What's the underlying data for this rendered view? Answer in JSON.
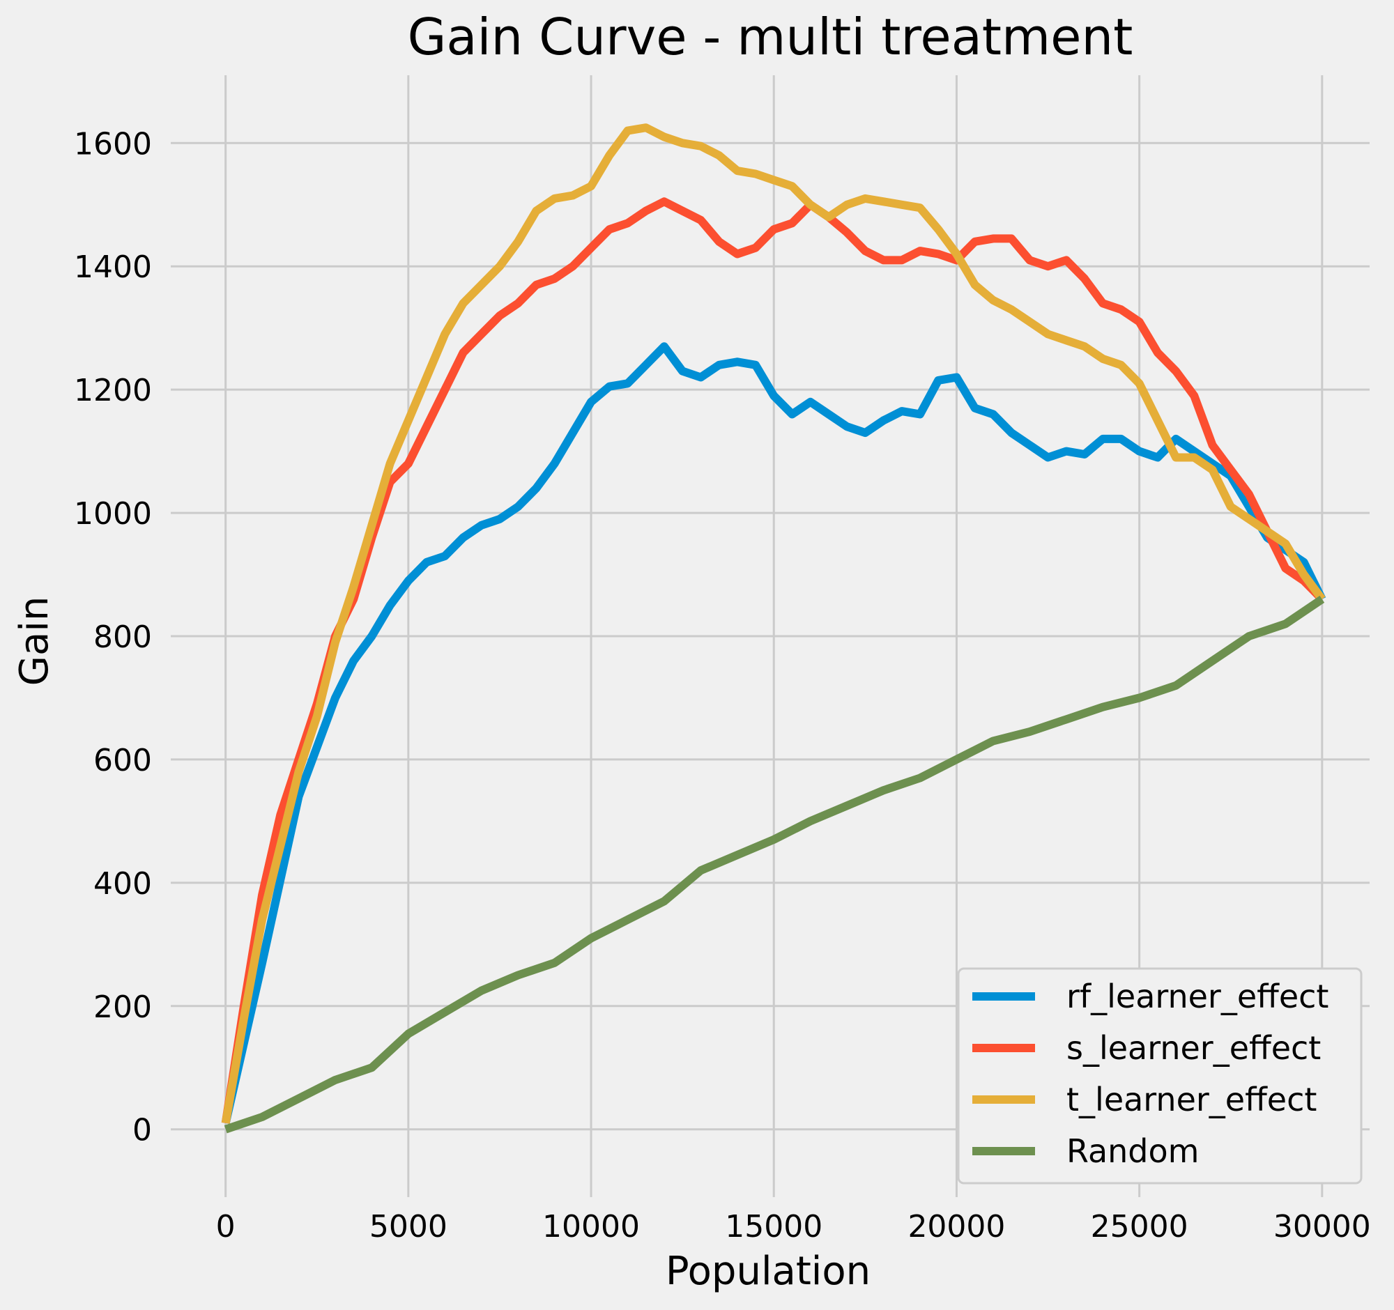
{
  "chart_data": {
    "type": "line",
    "title": "Gain Curve - multi treatment",
    "xlabel": "Population",
    "ylabel": "Gain",
    "xlim": [
      -1500,
      31300
    ],
    "ylim": [
      -110,
      1710
    ],
    "xticks": [
      0,
      5000,
      10000,
      15000,
      20000,
      25000,
      30000
    ],
    "yticks": [
      0,
      200,
      400,
      600,
      800,
      1000,
      1200,
      1400,
      1600
    ],
    "grid": true,
    "legend_position": "lower-right",
    "series": [
      {
        "name": "rf_learner_effect",
        "color": "#008fd5",
        "x": [
          0,
          1000,
          2000,
          3000,
          3500,
          4000,
          4500,
          5000,
          5500,
          6000,
          6500,
          7000,
          7500,
          8000,
          8500,
          9000,
          9500,
          10000,
          10500,
          11000,
          11500,
          12000,
          12500,
          13000,
          13500,
          14000,
          14500,
          15000,
          15500,
          16000,
          16500,
          17000,
          17500,
          18000,
          18500,
          19000,
          19500,
          20000,
          20500,
          21000,
          21500,
          22000,
          22500,
          23000,
          23500,
          24000,
          24500,
          25000,
          25500,
          26000,
          26500,
          27000,
          27500,
          28000,
          28500,
          29000,
          29500,
          30000
        ],
        "y": [
          10,
          270,
          540,
          700,
          760,
          800,
          850,
          890,
          920,
          930,
          960,
          980,
          990,
          1010,
          1040,
          1080,
          1130,
          1180,
          1205,
          1210,
          1240,
          1270,
          1230,
          1220,
          1240,
          1245,
          1240,
          1190,
          1160,
          1180,
          1160,
          1140,
          1130,
          1150,
          1165,
          1160,
          1215,
          1220,
          1170,
          1160,
          1130,
          1110,
          1090,
          1100,
          1095,
          1120,
          1120,
          1100,
          1090,
          1120,
          1100,
          1080,
          1060,
          1010,
          960,
          940,
          920,
          860
        ]
      },
      {
        "name": "s_learner_effect",
        "color": "#fc4f30",
        "x": [
          0,
          500,
          1000,
          1500,
          2000,
          2500,
          3000,
          3500,
          4000,
          4500,
          5000,
          5500,
          6000,
          6500,
          7000,
          7500,
          8000,
          8500,
          9000,
          9500,
          10000,
          10500,
          11000,
          11500,
          12000,
          12500,
          13000,
          13500,
          14000,
          14500,
          15000,
          15500,
          16000,
          16500,
          17000,
          17500,
          18000,
          18500,
          19000,
          19500,
          20000,
          20500,
          21000,
          21500,
          22000,
          22500,
          23000,
          23500,
          24000,
          24500,
          25000,
          25500,
          26000,
          26500,
          27000,
          27500,
          28000,
          28500,
          29000,
          29500,
          30000
        ],
        "y": [
          10,
          200,
          380,
          510,
          600,
          690,
          800,
          860,
          960,
          1050,
          1080,
          1140,
          1200,
          1260,
          1290,
          1320,
          1340,
          1370,
          1380,
          1400,
          1430,
          1460,
          1470,
          1490,
          1505,
          1490,
          1475,
          1440,
          1420,
          1430,
          1460,
          1470,
          1500,
          1480,
          1455,
          1425,
          1410,
          1410,
          1425,
          1420,
          1410,
          1440,
          1445,
          1445,
          1410,
          1400,
          1410,
          1380,
          1340,
          1330,
          1310,
          1260,
          1230,
          1190,
          1110,
          1070,
          1030,
          970,
          910,
          890,
          860
        ]
      },
      {
        "name": "t_learner_effect",
        "color": "#e5ae38",
        "x": [
          0,
          500,
          1000,
          1500,
          2000,
          2500,
          3000,
          3500,
          4000,
          4500,
          5000,
          5500,
          6000,
          6500,
          7000,
          7500,
          8000,
          8500,
          9000,
          9500,
          10000,
          10500,
          11000,
          11500,
          12000,
          12500,
          13000,
          13500,
          14000,
          14500,
          15000,
          15500,
          16000,
          16500,
          17000,
          17500,
          18000,
          18500,
          19000,
          19500,
          20000,
          20500,
          21000,
          21500,
          22000,
          22500,
          23000,
          23500,
          24000,
          24500,
          25000,
          25500,
          26000,
          26500,
          27000,
          27500,
          28000,
          28500,
          29000,
          29500,
          30000
        ],
        "y": [
          10,
          180,
          340,
          460,
          580,
          670,
          790,
          880,
          980,
          1080,
          1150,
          1220,
          1290,
          1340,
          1370,
          1400,
          1440,
          1490,
          1510,
          1515,
          1530,
          1580,
          1620,
          1625,
          1610,
          1600,
          1595,
          1580,
          1555,
          1550,
          1540,
          1530,
          1500,
          1480,
          1500,
          1510,
          1505,
          1500,
          1495,
          1460,
          1420,
          1370,
          1345,
          1330,
          1310,
          1290,
          1280,
          1270,
          1250,
          1240,
          1210,
          1150,
          1090,
          1090,
          1070,
          1010,
          990,
          970,
          950,
          900,
          860
        ]
      },
      {
        "name": "Random",
        "color": "#6d904f",
        "x": [
          0,
          1000,
          2000,
          3000,
          4000,
          5000,
          6000,
          7000,
          8000,
          9000,
          10000,
          11000,
          12000,
          13000,
          14000,
          15000,
          16000,
          17000,
          18000,
          19000,
          20000,
          21000,
          22000,
          23000,
          24000,
          25000,
          26000,
          27000,
          28000,
          29000,
          30000
        ],
        "y": [
          0,
          20,
          50,
          80,
          100,
          155,
          190,
          225,
          250,
          270,
          310,
          340,
          370,
          420,
          445,
          470,
          500,
          525,
          550,
          570,
          600,
          630,
          645,
          665,
          685,
          700,
          720,
          760,
          800,
          820,
          860
        ]
      }
    ]
  }
}
